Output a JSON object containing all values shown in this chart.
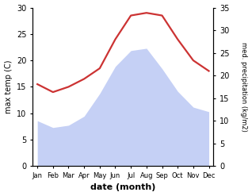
{
  "months": [
    "Jan",
    "Feb",
    "Mar",
    "Apr",
    "May",
    "Jun",
    "Jul",
    "Aug",
    "Sep",
    "Oct",
    "Nov",
    "Dec"
  ],
  "max_temp": [
    15.5,
    14.0,
    15.0,
    16.5,
    18.5,
    24.0,
    28.5,
    29.0,
    28.5,
    24.0,
    20.0,
    18.0
  ],
  "precipitation": [
    10.0,
    8.5,
    9.0,
    11.0,
    16.0,
    22.0,
    25.5,
    26.0,
    21.5,
    16.5,
    13.0,
    12.0
  ],
  "temp_color": "#cc3333",
  "precip_fill_color": "#c5d0f5",
  "background_color": "#ffffff",
  "xlabel": "date (month)",
  "ylabel_left": "max temp (C)",
  "ylabel_right": "med. precipitation (kg/m2)",
  "ylim_left": [
    0,
    30
  ],
  "ylim_right": [
    0,
    35
  ],
  "yticks_left": [
    0,
    5,
    10,
    15,
    20,
    25,
    30
  ],
  "yticks_right": [
    0,
    5,
    10,
    15,
    20,
    25,
    30,
    35
  ]
}
